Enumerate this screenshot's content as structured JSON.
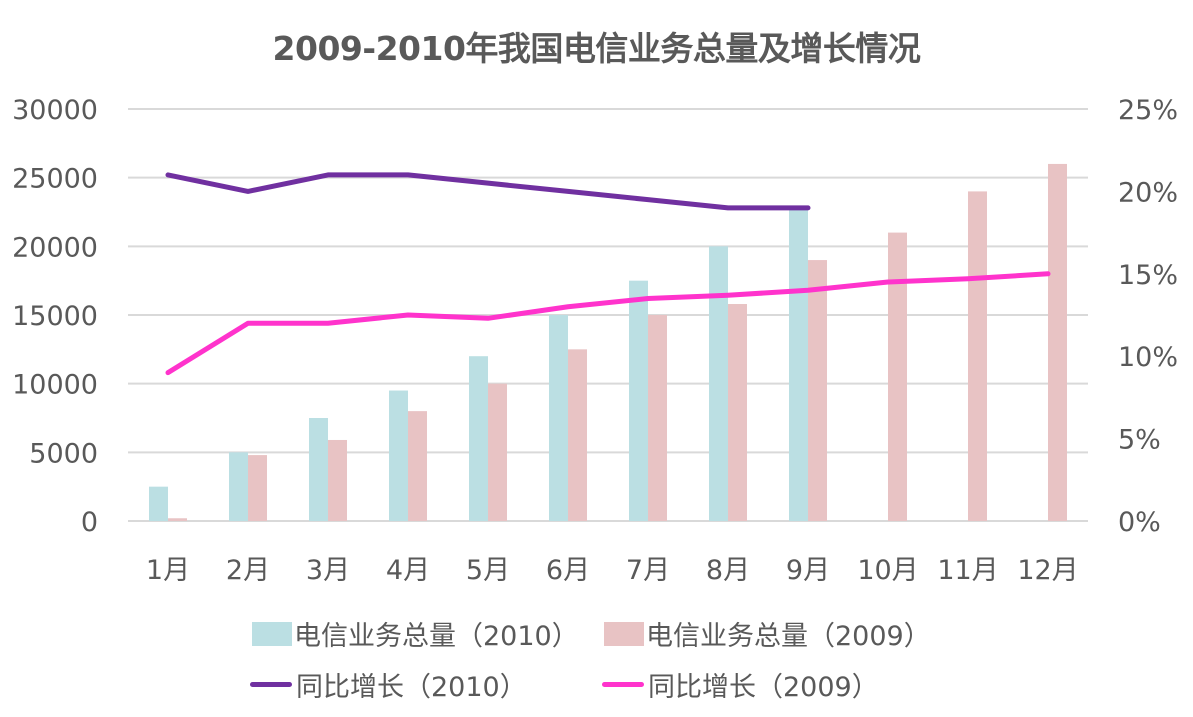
{
  "chart_data": {
    "type": "bar",
    "title": "2009-2010年我国电信业务总量及增长情况",
    "categories": [
      "1月",
      "2月",
      "3月",
      "4月",
      "5月",
      "6月",
      "7月",
      "8月",
      "9月",
      "10月",
      "11月",
      "12月"
    ],
    "y_left": {
      "ylim": [
        0,
        30000
      ],
      "ticks": [
        0,
        5000,
        10000,
        15000,
        20000,
        25000,
        30000
      ],
      "tick_labels": [
        "0",
        "5000",
        "10000",
        "15000",
        "20000",
        "25000",
        "30000"
      ]
    },
    "y_right": {
      "ylim": [
        0,
        25
      ],
      "ticks": [
        0,
        5,
        10,
        15,
        20,
        25
      ],
      "tick_labels": [
        "0%",
        "5%",
        "10%",
        "15%",
        "20%",
        "25%"
      ]
    },
    "grid": true,
    "legend_position": "bottom",
    "series": [
      {
        "name": "电信业务总量（2010）",
        "type": "bar",
        "axis": "left",
        "color": "#BBDFE3",
        "values": [
          2500,
          5000,
          7500,
          9500,
          12000,
          15000,
          17500,
          20000,
          22800,
          null,
          null,
          null
        ]
      },
      {
        "name": "电信业务总量（2009）",
        "type": "bar",
        "axis": "left",
        "color": "#E8C3C4",
        "values": [
          200,
          4800,
          5900,
          8000,
          10000,
          12500,
          15000,
          15800,
          19000,
          21000,
          24000,
          26000
        ]
      },
      {
        "name": "同比增长（2010）",
        "type": "line",
        "axis": "right",
        "color": "#7030A0",
        "values": [
          21,
          20,
          21,
          21,
          20.5,
          20,
          19.5,
          19,
          19,
          null,
          null,
          null
        ]
      },
      {
        "name": "同比增长（2009）",
        "type": "line",
        "axis": "right",
        "color": "#FF33CC",
        "values": [
          9,
          12,
          12,
          12.5,
          12.3,
          13,
          13.5,
          13.7,
          14,
          14.5,
          14.7,
          15
        ]
      }
    ]
  },
  "legend": {
    "items": [
      {
        "label": "电信业务总量（2010）"
      },
      {
        "label": "电信业务总量（2009）"
      },
      {
        "label": "同比增长（2010）"
      },
      {
        "label": "同比增长（2009）"
      }
    ]
  }
}
